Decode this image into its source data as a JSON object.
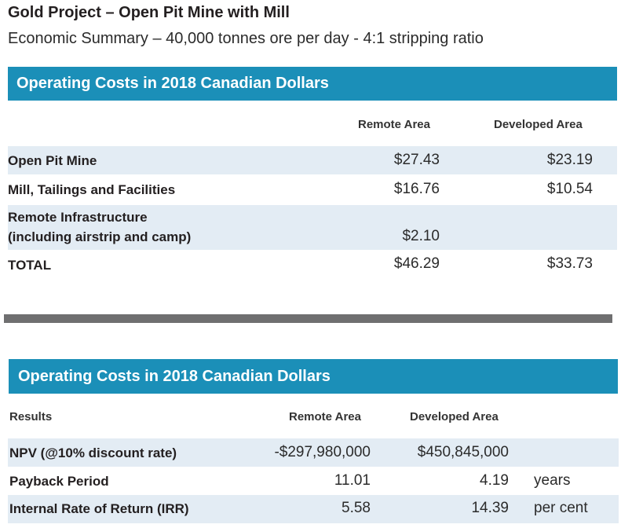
{
  "document": {
    "title": "Gold Project – Open Pit Mine with Mill",
    "subtitle": "Economic Summary – 40,000 tonnes ore per day - 4:1 stripping ratio"
  },
  "table1": {
    "heading": "Operating Costs in 2018 Canadian Dollars",
    "columns": [
      "Remote Area",
      "Developed Area"
    ],
    "rows": [
      {
        "label": "Open Pit Mine",
        "remote": "$27.43",
        "developed": "$23.19"
      },
      {
        "label": "Mill, Tailings and Facilities",
        "remote": "$16.76",
        "developed": "$10.54"
      },
      {
        "label_line1": "Remote Infrastructure",
        "label_line2": "(including airstrip and camp)",
        "remote": "$2.10",
        "developed": ""
      },
      {
        "label": "TOTAL",
        "remote": "$46.29",
        "developed": "$33.73"
      }
    ]
  },
  "table2": {
    "heading": "Operating Costs in 2018 Canadian Dollars",
    "columns": [
      "Results",
      "Remote Area",
      "Developed Area"
    ],
    "rows": [
      {
        "label": "NPV (@10% discount rate)",
        "remote": "-$297,980,000",
        "developed": "$450,845,000",
        "unit": ""
      },
      {
        "label": "Payback Period",
        "remote": "11.01",
        "developed": "4.19",
        "unit": "years"
      },
      {
        "label": "Internal Rate of Return (IRR)",
        "remote": "5.58",
        "developed": "14.39",
        "unit": "per cent"
      }
    ]
  },
  "colors": {
    "band": "#1b8fb8",
    "stripe": "#e3ecf4",
    "divider": "#6f6f70"
  }
}
